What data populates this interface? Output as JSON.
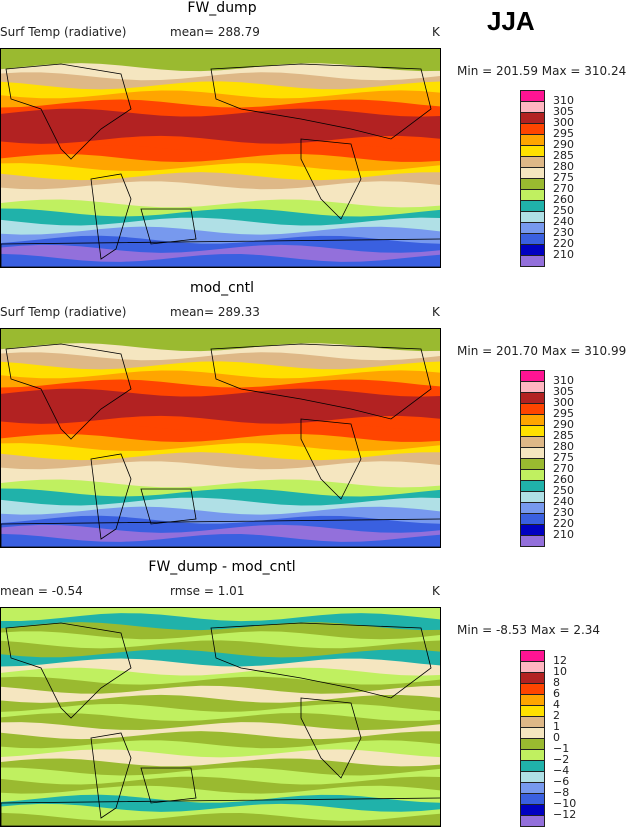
{
  "season": "JJA",
  "colors": [
    "#ff1493",
    "#ffb6c1",
    "#b22222",
    "#ff4500",
    "#ffa500",
    "#ffe000",
    "#deb887",
    "#f5e6c0",
    "#9aba30",
    "#c0f060",
    "#20b2aa",
    "#b0e0e6",
    "#7799ee",
    "#3a60e0",
    "#0000c0",
    "#9370db"
  ],
  "panels": [
    {
      "title": "FW_dump",
      "left_label": "Surf Temp (radiative)",
      "mid_label": "mean=  288.79",
      "units": "K",
      "minmax": "Min = 201.59 Max = 310.24",
      "levels": [
        "310",
        "305",
        "300",
        "295",
        "290",
        "285",
        "280",
        "275",
        "270",
        "260",
        "250",
        "240",
        "230",
        "220",
        "210"
      ],
      "bands": [
        8,
        8,
        7,
        6,
        5,
        4,
        3,
        2,
        2,
        2,
        3,
        3,
        4,
        5,
        6,
        7,
        7,
        9,
        10,
        11,
        12,
        13,
        15,
        13
      ]
    },
    {
      "title": "mod_cntl",
      "left_label": "Surf Temp (radiative)",
      "mid_label": "mean=  289.33",
      "units": "K",
      "minmax": "Min = 201.70 Max = 310.99",
      "levels": [
        "310",
        "305",
        "300",
        "295",
        "290",
        "285",
        "280",
        "275",
        "270",
        "260",
        "250",
        "240",
        "230",
        "220",
        "210"
      ],
      "bands": [
        8,
        8,
        7,
        6,
        5,
        4,
        3,
        2,
        2,
        2,
        3,
        3,
        4,
        5,
        6,
        7,
        7,
        9,
        10,
        11,
        12,
        13,
        15,
        13
      ]
    },
    {
      "title": "FW_dump - mod_cntl",
      "left_label": "mean =   -0.54",
      "mid_label": "rmse =    1.01",
      "units": "K",
      "minmax": "Min =   -8.53 Max =    2.34",
      "levels": [
        "12",
        "10",
        "8",
        "6",
        "4",
        "2",
        "1",
        "0",
        "−1",
        "−2",
        "−4",
        "−6",
        "−8",
        "−10",
        "−12"
      ],
      "bands": [
        9,
        10,
        8,
        9,
        8,
        10,
        7,
        9,
        8,
        7,
        8,
        9,
        8,
        7,
        8,
        9,
        7,
        8,
        9,
        8,
        9,
        10,
        9,
        8
      ]
    }
  ]
}
